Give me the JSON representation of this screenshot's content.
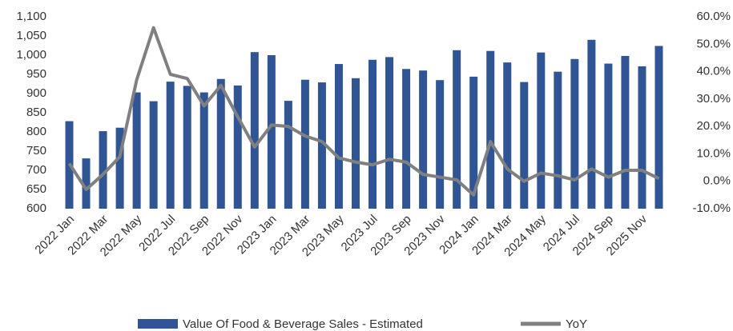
{
  "chart_data": {
    "type": "bar_line",
    "categories": [
      "2022 Jan",
      null,
      "2022 Mar",
      null,
      "2022 May",
      null,
      "2022 Jul",
      null,
      "2022 Sep",
      null,
      "2022 Nov",
      null,
      "2023 Jan",
      null,
      "2023 Mar",
      null,
      "2023 May",
      null,
      "2023 Jul",
      null,
      "2023 Sep",
      null,
      "2023 Nov",
      null,
      "2024 Jan",
      null,
      "2024 Mar",
      null,
      "2024 May",
      null,
      "2024 Jul",
      null,
      "2024 Sep",
      null,
      "2025 Nov",
      null
    ],
    "series": [
      {
        "name": "Value Of Food & Beverage Sales - Estimated",
        "type": "bar",
        "color": "#2f5597",
        "values": [
          828,
          731,
          802,
          811,
          903,
          880,
          931,
          920,
          903,
          938,
          921,
          1008,
          1000,
          881,
          936,
          929,
          977,
          940,
          988,
          995,
          964,
          960,
          935,
          1013,
          944,
          1011,
          981,
          930,
          1007,
          957,
          990,
          1040,
          978,
          998,
          971,
          1024
        ]
      },
      {
        "name": "YoY",
        "type": "line",
        "axis": "y2",
        "color": "#808080",
        "values": [
          6.5,
          -3,
          2.5,
          9,
          37,
          56,
          39,
          37.5,
          27.5,
          35,
          23.5,
          12.5,
          20.5,
          20,
          16.5,
          14.5,
          8.5,
          7,
          6,
          8,
          7,
          2.5,
          1.5,
          0.5,
          -5,
          14.5,
          4.5,
          0,
          3,
          2,
          0.5,
          4.5,
          1.5,
          4,
          4,
          1
        ]
      }
    ],
    "ylim": [
      600,
      1100
    ],
    "yticks": [
      600,
      650,
      700,
      750,
      800,
      850,
      900,
      950,
      {
        "value": 1000,
        "label": "1,000"
      },
      {
        "value": 1050,
        "label": "1,050"
      },
      {
        "value": 1100,
        "label": "1,100"
      }
    ],
    "y2lim": [
      -10,
      60
    ],
    "y2ticks": [
      {
        "value": -10,
        "label": "-10.0%"
      },
      {
        "value": 0,
        "label": "0.0%"
      },
      {
        "value": 10,
        "label": "10.0%"
      },
      {
        "value": 20,
        "label": "20.0%"
      },
      {
        "value": 30,
        "label": "30.0%"
      },
      {
        "value": 40,
        "label": "40.0%"
      },
      {
        "value": 50,
        "label": "50.0%"
      },
      {
        "value": 60,
        "label": "60.0%"
      }
    ],
    "legend": "bottom"
  }
}
